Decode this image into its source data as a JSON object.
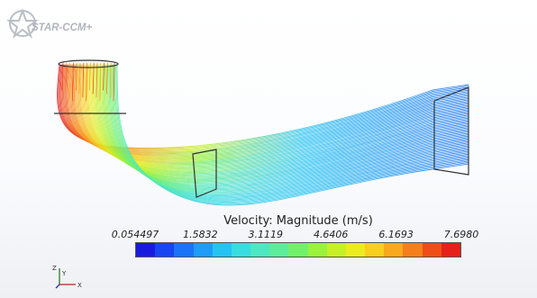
{
  "logo": {
    "text": "STAR-CCM+"
  },
  "legend": {
    "title": "Velocity: Magnitude (m/s)",
    "tick_labels": [
      "0.054497",
      "1.5832",
      "3.1119",
      "4.6406",
      "6.1693",
      "7.6980"
    ],
    "colors": [
      "#1a1adf",
      "#1745ef",
      "#1b73f7",
      "#1e9cf7",
      "#25c3f2",
      "#39dde0",
      "#4de7c1",
      "#5cec9a",
      "#73f06a",
      "#9af23d",
      "#c6f126",
      "#eceb20",
      "#f8cf1e",
      "#f8a91c",
      "#f57f1a",
      "#ef4d18",
      "#e6201a"
    ]
  },
  "triad": {
    "y_label": "Y",
    "x_label": "X",
    "z_label": "Z"
  }
}
